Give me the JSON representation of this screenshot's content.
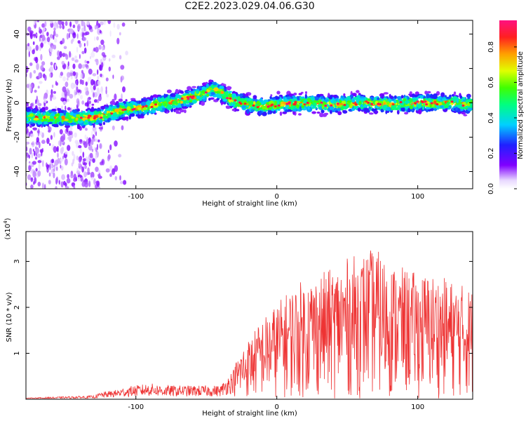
{
  "title": "C2E2.2023.029.04.06.G30",
  "chart_data": [
    {
      "type": "heatmap",
      "xlabel": "Height of straight line (km)",
      "ylabel": "Frequency (Hz)",
      "xlim": [
        -178,
        139
      ],
      "ylim": [
        -50,
        48
      ],
      "xticks": [
        -100,
        0,
        100
      ],
      "xtick_labels": [
        "-100",
        "0",
        "100"
      ],
      "yticks": [
        -40,
        -20,
        0,
        20,
        40
      ],
      "ytick_labels": [
        "-40",
        "-20",
        "0",
        "20",
        "40"
      ],
      "ridge": {
        "x": [
          -178,
          -160,
          -140,
          -125,
          -110,
          -95,
          -85,
          -70,
          -60,
          -50,
          -45,
          -38,
          -30,
          -20,
          -10,
          0,
          20,
          40,
          60,
          80,
          100,
          120,
          139
        ],
        "y": [
          -8,
          -9,
          -9,
          -8,
          -4,
          -3,
          -1,
          1,
          3,
          6,
          8,
          5,
          1,
          -1,
          -2,
          -1,
          0,
          -1,
          0,
          -1,
          0,
          0,
          -1
        ]
      },
      "colorbar": {
        "label": "Normalized spectral amplitude",
        "range": [
          0,
          0.95
        ],
        "ticks": [
          0.0,
          0.2,
          0.4,
          0.6,
          0.8
        ],
        "tick_labels": [
          "0.0",
          "0.2",
          "0.4",
          "0.6",
          "0.8"
        ]
      },
      "grid": false
    },
    {
      "type": "line",
      "xlabel": "Height of straight line (km)",
      "ylabel": "SNR (10 * v/v)",
      "yscale_note": "(x10",
      "yscale_exp": "4",
      "yscale_close": ")",
      "xlim": [
        -178,
        139
      ],
      "ylim": [
        0,
        3.65
      ],
      "xticks": [
        -100,
        0,
        100
      ],
      "xtick_labels": [
        "-100",
        "0",
        "100"
      ],
      "yticks": [
        1,
        2,
        3
      ],
      "ytick_labels": [
        "1",
        "2",
        "3"
      ],
      "color": "#ee3333",
      "envelope": {
        "x": [
          -178,
          -130,
          -125,
          -115,
          -105,
          -90,
          -80,
          -60,
          -40,
          -30,
          -25,
          -20,
          -10,
          0,
          10,
          20,
          40,
          50,
          60,
          70,
          80,
          90,
          100,
          110,
          120,
          130,
          139
        ],
        "y": [
          0.03,
          0.08,
          0.15,
          0.2,
          0.28,
          0.35,
          0.3,
          0.3,
          0.3,
          0.7,
          1.0,
          1.2,
          1.6,
          1.9,
          2.2,
          2.4,
          2.6,
          2.8,
          2.9,
          3.0,
          2.7,
          2.6,
          2.5,
          2.5,
          2.4,
          2.3,
          2.2
        ]
      },
      "grid": false
    }
  ]
}
